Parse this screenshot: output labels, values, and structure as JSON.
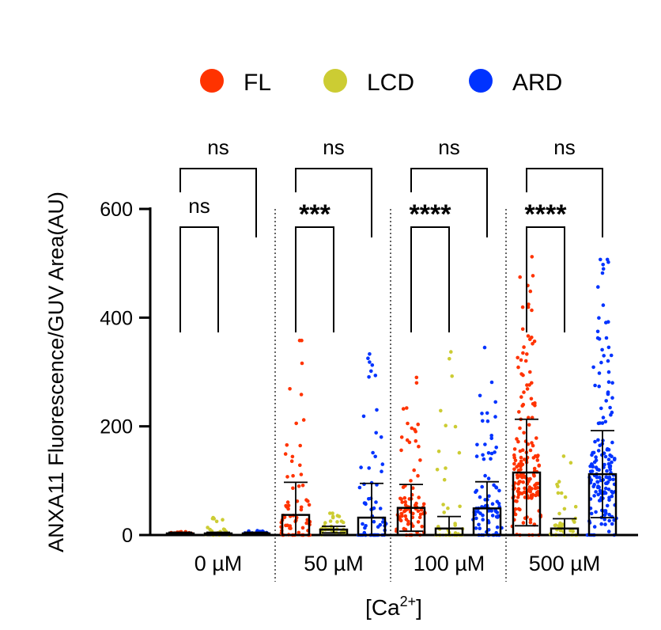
{
  "chart_data": {
    "type": "bar",
    "title": "",
    "xlabel": "[Ca",
    "xlabel_sup": "2+",
    "xlabel_close": "]",
    "ylabel": "ANXA11 Fluorescence/GUV Area(AU)",
    "ylim": [
      0,
      600
    ],
    "yticks": [
      0,
      200,
      400,
      600
    ],
    "categories": [
      "0 µM",
      "50 µM",
      "100 µM",
      "500 µM"
    ],
    "legend_position": "top",
    "series": [
      {
        "name": "FL",
        "color": "#ff3300",
        "values": [
          3,
          37,
          50,
          115
        ],
        "sd": [
          2,
          60,
          43,
          98
        ],
        "max": [
          6,
          358,
          290,
          512
        ]
      },
      {
        "name": "LCD",
        "color": "#cccc33",
        "values": [
          3,
          10,
          12,
          12
        ],
        "sd": [
          2,
          6,
          22,
          18
        ],
        "max": [
          32,
          40,
          337,
          145
        ]
      },
      {
        "name": "ARD",
        "color": "#0033ff",
        "values": [
          3,
          32,
          49,
          112
        ],
        "sd": [
          2,
          63,
          49,
          80
        ],
        "max": [
          8,
          333,
          345,
          507
        ]
      }
    ],
    "comparisons": [
      {
        "group": "0 µM",
        "pair": [
          "FL",
          "LCD"
        ],
        "label": "ns"
      },
      {
        "group": "0 µM",
        "pair": [
          "FL",
          "ARD"
        ],
        "label": "ns"
      },
      {
        "group": "50 µM",
        "pair": [
          "FL",
          "LCD"
        ],
        "label": "***"
      },
      {
        "group": "50 µM",
        "pair": [
          "FL",
          "ARD"
        ],
        "label": "ns"
      },
      {
        "group": "100 µM",
        "pair": [
          "FL",
          "LCD"
        ],
        "label": "****"
      },
      {
        "group": "100 µM",
        "pair": [
          "FL",
          "ARD"
        ],
        "label": "ns"
      },
      {
        "group": "500 µM",
        "pair": [
          "FL",
          "LCD"
        ],
        "label": "****"
      },
      {
        "group": "500 µM",
        "pair": [
          "FL",
          "ARD"
        ],
        "label": "ns"
      }
    ]
  }
}
